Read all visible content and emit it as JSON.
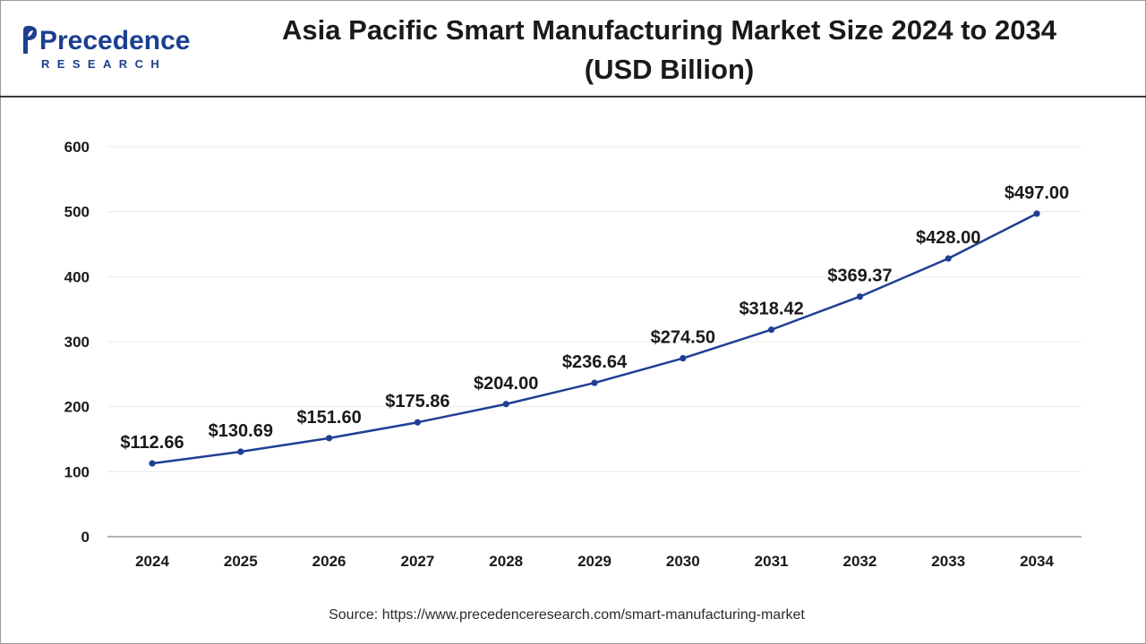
{
  "header": {
    "logo_name": "Precedence",
    "logo_sub": "RESEARCH",
    "title_line1": "Asia Pacific Smart Manufacturing Market Size 2024 to 2034",
    "title_line2": "(USD Billion)"
  },
  "colors": {
    "line": "#1f3f94",
    "brand": "#1c3f8f",
    "grid": "#e9e9e9",
    "axis": "#9a9a9a"
  },
  "chart_data": {
    "type": "line",
    "title": "Asia Pacific Smart Manufacturing Market Size 2024 to 2034 (USD Billion)",
    "xlabel": "",
    "ylabel": "",
    "categories": [
      "2024",
      "2025",
      "2026",
      "2027",
      "2028",
      "2029",
      "2030",
      "2031",
      "2032",
      "2033",
      "2034"
    ],
    "series": [
      {
        "values": [
          112.66,
          130.69,
          151.6,
          175.86,
          204.0,
          236.64,
          274.5,
          318.42,
          369.37,
          428.0,
          497.0
        ],
        "labels": [
          "$112.66",
          "$130.69",
          "$151.60",
          "$175.86",
          "$204.00",
          "$236.64",
          "$274.50",
          "$318.42",
          "$369.37",
          "$428.00",
          "$497.00"
        ]
      }
    ],
    "ylim": [
      0,
      600
    ],
    "yticks": [
      0,
      100,
      200,
      300,
      400,
      500,
      600
    ],
    "grid": true,
    "legend": "none"
  },
  "footer": {
    "source": "Source: https://www.precedenceresearch.com/smart-manufacturing-market"
  }
}
